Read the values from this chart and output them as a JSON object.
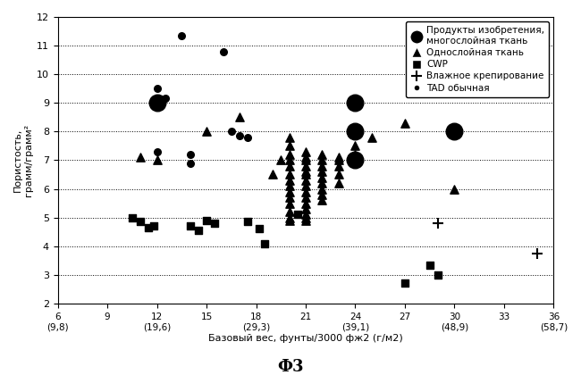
{
  "title": "Ф3",
  "xlabel": "Базовый вес, фунты/3000 фж2 (г/м2)",
  "ylabel": "Пористость,\nграмм/грамм²",
  "xlim": [
    6,
    36
  ],
  "ylim": [
    2,
    12
  ],
  "xticks": [
    6,
    9,
    12,
    15,
    18,
    21,
    24,
    27,
    30,
    33,
    36
  ],
  "yticks": [
    2,
    3,
    4,
    5,
    6,
    7,
    8,
    9,
    10,
    11,
    12
  ],
  "legend_labels": [
    "Продукты изобретения,\nмногослойная ткань",
    "Однослойная ткань",
    "CWP",
    "Влажное крепирование",
    "TAD обычная"
  ],
  "invention_points": [
    [
      12,
      9.0
    ],
    [
      24,
      9.0
    ],
    [
      24,
      8.0
    ],
    [
      24,
      7.0
    ],
    [
      30,
      8.0
    ]
  ],
  "invention_size": 180,
  "single_layer_points": [
    [
      11,
      7.1
    ],
    [
      12,
      7.0
    ],
    [
      15,
      8.0
    ],
    [
      17,
      8.5
    ],
    [
      19,
      6.5
    ],
    [
      19.5,
      7.0
    ],
    [
      20,
      7.8
    ],
    [
      20,
      7.5
    ],
    [
      20,
      7.2
    ],
    [
      20,
      7.0
    ],
    [
      20,
      6.8
    ],
    [
      20,
      6.5
    ],
    [
      20,
      6.3
    ],
    [
      20,
      6.1
    ],
    [
      20,
      5.9
    ],
    [
      20,
      5.7
    ],
    [
      20,
      5.5
    ],
    [
      20,
      5.2
    ],
    [
      20,
      5.0
    ],
    [
      20,
      4.9
    ],
    [
      21,
      7.3
    ],
    [
      21,
      7.1
    ],
    [
      21,
      7.0
    ],
    [
      21,
      6.8
    ],
    [
      21,
      6.6
    ],
    [
      21,
      6.5
    ],
    [
      21,
      6.3
    ],
    [
      21,
      6.1
    ],
    [
      21,
      5.9
    ],
    [
      21,
      5.7
    ],
    [
      21,
      5.5
    ],
    [
      21,
      5.3
    ],
    [
      21,
      5.1
    ],
    [
      21,
      5.0
    ],
    [
      21,
      4.9
    ],
    [
      22,
      7.2
    ],
    [
      22,
      7.0
    ],
    [
      22,
      6.8
    ],
    [
      22,
      6.6
    ],
    [
      22,
      6.4
    ],
    [
      22,
      6.2
    ],
    [
      22,
      6.0
    ],
    [
      22,
      5.8
    ],
    [
      22,
      5.6
    ],
    [
      23,
      7.1
    ],
    [
      23,
      7.0
    ],
    [
      23,
      6.8
    ],
    [
      23,
      6.5
    ],
    [
      23,
      6.2
    ],
    [
      24,
      7.5
    ],
    [
      24,
      7.2
    ],
    [
      25,
      7.8
    ],
    [
      27,
      8.3
    ],
    [
      30,
      6.0
    ]
  ],
  "single_layer_size": 45,
  "cwp_points": [
    [
      10.5,
      5.0
    ],
    [
      11,
      4.85
    ],
    [
      11.5,
      4.65
    ],
    [
      11.8,
      4.7
    ],
    [
      14,
      4.7
    ],
    [
      14.5,
      4.55
    ],
    [
      15,
      4.9
    ],
    [
      15.5,
      4.8
    ],
    [
      17.5,
      4.85
    ],
    [
      18.2,
      4.6
    ],
    [
      18.5,
      4.1
    ],
    [
      20.5,
      5.1
    ],
    [
      27,
      2.7
    ],
    [
      28.5,
      3.35
    ],
    [
      29,
      3.0
    ]
  ],
  "cwp_size": 35,
  "wet_crepe_points": [
    [
      29,
      4.8
    ],
    [
      35,
      3.75
    ]
  ],
  "wet_crepe_size": 80,
  "tad_points": [
    [
      13.5,
      11.35
    ],
    [
      16,
      10.8
    ],
    [
      12,
      9.5
    ],
    [
      12.5,
      9.15
    ],
    [
      16.5,
      8.0
    ],
    [
      17,
      7.85
    ],
    [
      17.5,
      7.8
    ],
    [
      12,
      7.3
    ],
    [
      14,
      7.2
    ],
    [
      14,
      6.9
    ]
  ],
  "tad_size": 30
}
